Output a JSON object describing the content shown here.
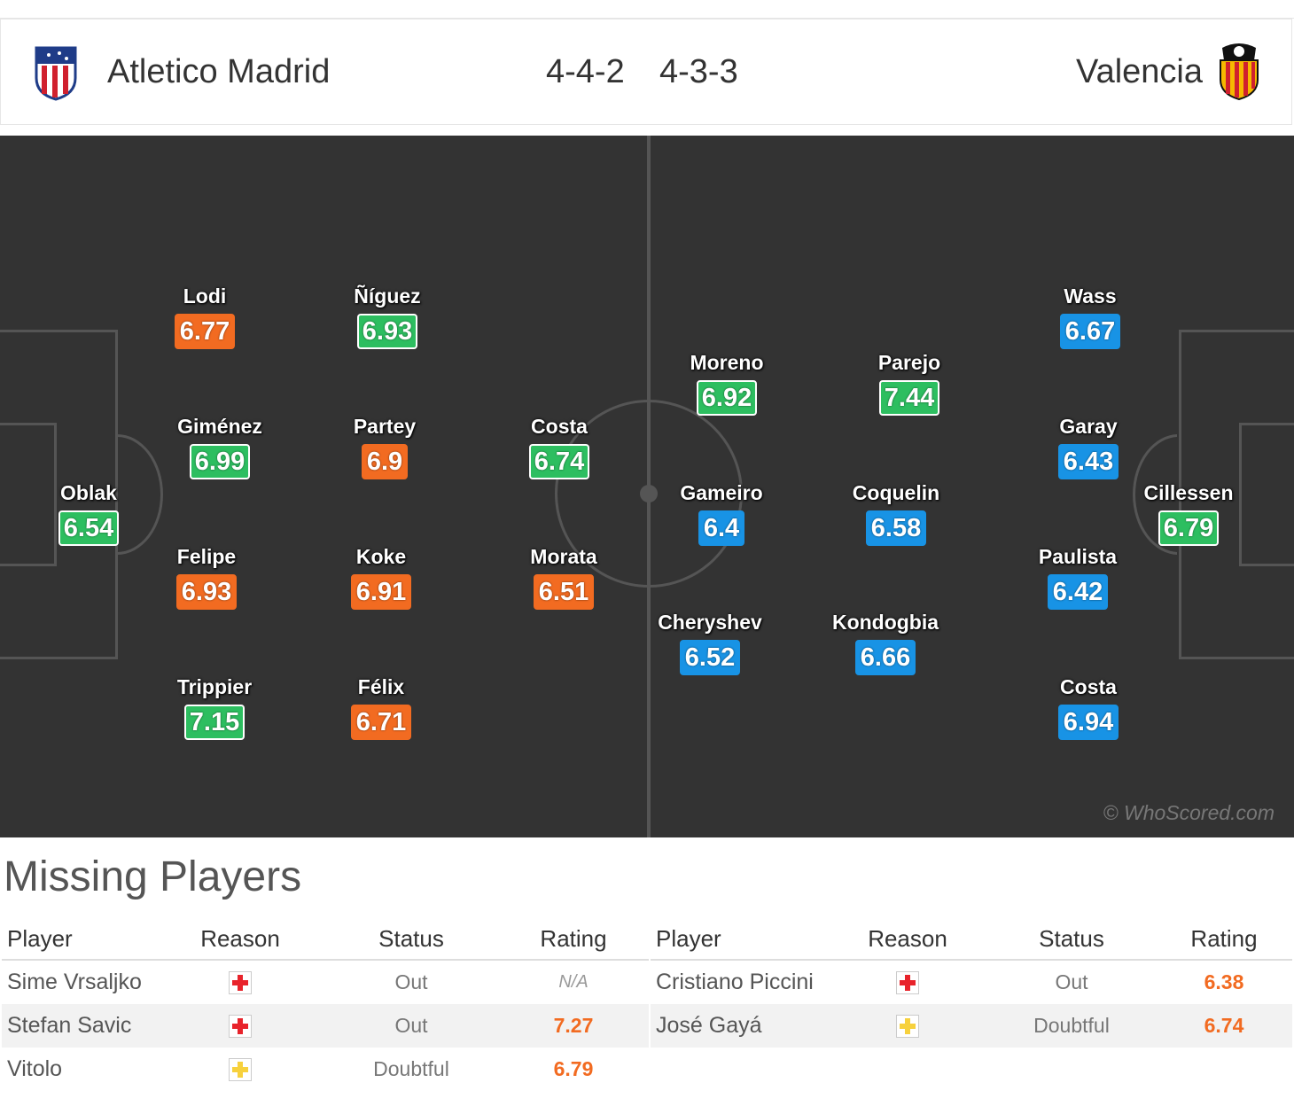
{
  "header": {
    "home_team": "Atletico Madrid",
    "home_formation": "4-4-2",
    "away_formation": "4-3-3",
    "away_team": "Valencia"
  },
  "colors": {
    "pitch": "#333333",
    "rating_good": "#2dbe60",
    "rating_home": "#f26b21",
    "rating_away": "#1893e5",
    "injury": "#e8232b",
    "doubtful": "#f7d13d"
  },
  "pitch": {
    "watermark": "© WhoScored.com",
    "home_players": [
      {
        "name": "Oblak",
        "rating": "6.54",
        "style": "green"
      },
      {
        "name": "Lodi",
        "rating": "6.77",
        "style": "orange"
      },
      {
        "name": "Giménez",
        "rating": "6.99",
        "style": "green"
      },
      {
        "name": "Felipe",
        "rating": "6.93",
        "style": "orange"
      },
      {
        "name": "Trippier",
        "rating": "7.15",
        "style": "green"
      },
      {
        "name": "Ñíguez",
        "rating": "6.93",
        "style": "green"
      },
      {
        "name": "Partey",
        "rating": "6.9",
        "style": "orange"
      },
      {
        "name": "Koke",
        "rating": "6.91",
        "style": "orange"
      },
      {
        "name": "Félix",
        "rating": "6.71",
        "style": "orange"
      },
      {
        "name": "Costa",
        "rating": "6.74",
        "style": "green"
      },
      {
        "name": "Morata",
        "rating": "6.51",
        "style": "orange"
      }
    ],
    "away_players": [
      {
        "name": "Moreno",
        "rating": "6.92",
        "style": "green"
      },
      {
        "name": "Gameiro",
        "rating": "6.4",
        "style": "blue"
      },
      {
        "name": "Cheryshev",
        "rating": "6.52",
        "style": "blue"
      },
      {
        "name": "Parejo",
        "rating": "7.44",
        "style": "green"
      },
      {
        "name": "Coquelin",
        "rating": "6.58",
        "style": "blue"
      },
      {
        "name": "Kondogbia",
        "rating": "6.66",
        "style": "blue"
      },
      {
        "name": "Wass",
        "rating": "6.67",
        "style": "blue"
      },
      {
        "name": "Garay",
        "rating": "6.43",
        "style": "blue"
      },
      {
        "name": "Paulista",
        "rating": "6.42",
        "style": "blue"
      },
      {
        "name": "Costa",
        "rating": "6.94",
        "style": "blue"
      },
      {
        "name": "Cillessen",
        "rating": "6.79",
        "style": "green"
      }
    ]
  },
  "missing": {
    "title": "Missing Players",
    "columns": [
      "Player",
      "Reason",
      "Status",
      "Rating"
    ],
    "home": [
      {
        "player": "Sime Vrsaljko",
        "reason": "injury-icon",
        "status": "Out",
        "rating": "N/A"
      },
      {
        "player": "Stefan Savic",
        "reason": "injury-icon",
        "status": "Out",
        "rating": "7.27"
      },
      {
        "player": "Vitolo",
        "reason": "doubtful-icon",
        "status": "Doubtful",
        "rating": "6.79"
      }
    ],
    "away": [
      {
        "player": "Cristiano Piccini",
        "reason": "injury-icon",
        "status": "Out",
        "rating": "6.38"
      },
      {
        "player": "José Gayá",
        "reason": "doubtful-icon",
        "status": "Doubtful",
        "rating": "6.74"
      }
    ]
  }
}
